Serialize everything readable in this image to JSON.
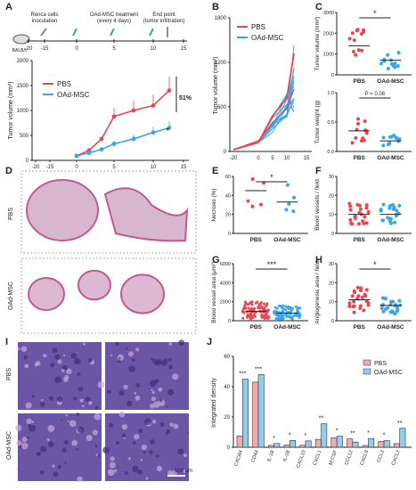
{
  "colors": {
    "pbs": "#e8474d",
    "oad": "#3aa6e6",
    "pbs_light": "#f3a9ab",
    "oad_light": "#8fcdf2",
    "tissue": "#c05a8f",
    "histo": "#7a5fb0"
  },
  "panel_labels": {
    "A": "A",
    "B": "B",
    "C": "C",
    "D": "D",
    "E": "E",
    "F": "F",
    "G": "G",
    "H": "H",
    "I": "I",
    "J": "J"
  },
  "timeline": {
    "mouse_label": "BALB/c",
    "steps": [
      "Renca cells\ninoculation",
      "OAd-MSC treatment\n(every 4 days)",
      "End point\n(tumor infiltration)"
    ],
    "ticks": [
      "-20",
      "-15",
      "0",
      "5",
      "10",
      "15"
    ]
  },
  "panel_A": {
    "ylabel": "Tumor volume (mm³)",
    "percent": "51%",
    "star": "*",
    "legend": [
      "PBS",
      "OAd-MSC"
    ],
    "xticks": [
      "-20",
      "-15",
      "0",
      "5",
      "10",
      "15"
    ],
    "yticks": [
      "0",
      "500",
      "1000",
      "1500",
      "2000"
    ]
  },
  "panel_B": {
    "ylabel": "Tumor volume (mm³)",
    "legend": [
      "PBS",
      "OAd-MSC"
    ],
    "xticks": [
      "-20",
      "0",
      "5",
      "10",
      "15"
    ],
    "yticks": [
      "0",
      "600",
      "1200",
      "1800"
    ]
  },
  "panel_C": {
    "top": {
      "ylabel": "Tumor volume (mm³)",
      "star": "*",
      "yticks": [
        "0",
        "1000",
        "2000",
        "3000"
      ]
    },
    "bottom": {
      "ylabel": "Tumor weight (g)",
      "pval": "P = 0.06",
      "yticks": [
        "0.0",
        "0.5",
        "1.0"
      ]
    },
    "categories": [
      "PBS",
      "OAd-MSC"
    ]
  },
  "panel_D": {
    "rows": [
      "PBS",
      "OAd-MSC"
    ]
  },
  "panel_E": {
    "ylabel": "Necrosis (%)",
    "star": "*",
    "categories": [
      "PBS",
      "OAd-MSC"
    ],
    "yticks": [
      "0",
      "20",
      "40",
      "60"
    ]
  },
  "panel_F": {
    "ylabel": "Blood vessels / field",
    "categories": [
      "PBS",
      "OAd-MSC"
    ],
    "yticks": [
      "0",
      "10",
      "20",
      "30"
    ]
  },
  "panel_G": {
    "ylabel": "Blood vessel area (μm²)",
    "star": "***",
    "categories": [
      "PBS",
      "OAd-MSC"
    ],
    "yticks": [
      "0",
      "2000",
      "4000",
      "6000"
    ]
  },
  "panel_H": {
    "ylabel": "Angiogenesis area / field",
    "star": "*",
    "categories": [
      "PBS",
      "OAd-MSC"
    ],
    "yticks": [
      "0",
      "10",
      "20",
      "30"
    ]
  },
  "panel_I": {
    "rows": [
      "PBS",
      "OAd-MSC"
    ],
    "scale": "100 μm"
  },
  "chart_data": {
    "type": "bar",
    "ylabel": "Integrated density",
    "legend": [
      "PBS",
      "OAd-MSC"
    ],
    "yticks": [
      "0",
      "20",
      "40",
      "60"
    ],
    "categories": [
      "CXCR4",
      "CD44",
      "IL-1B",
      "IL-1B",
      "CXCL10",
      "CXCL1",
      "M-CSF",
      "CCL12",
      "CXCL9",
      "CCL3",
      "CXCL2"
    ],
    "series": [
      {
        "name": "PBS",
        "values": [
          7.5,
          43,
          1.2,
          1.5,
          1.3,
          5.2,
          6.2,
          5.5,
          1.2,
          3.8,
          2.4
        ]
      },
      {
        "name": "OAd-MSC",
        "values": [
          45,
          48,
          2.5,
          4.5,
          4.2,
          15.5,
          7.3,
          3.4,
          5.8,
          4.4,
          12.5
        ]
      }
    ],
    "stars": [
      "***",
      "***",
      "*",
      "*",
      "*",
      "**",
      "*",
      "**",
      "*",
      "*",
      "**"
    ]
  }
}
